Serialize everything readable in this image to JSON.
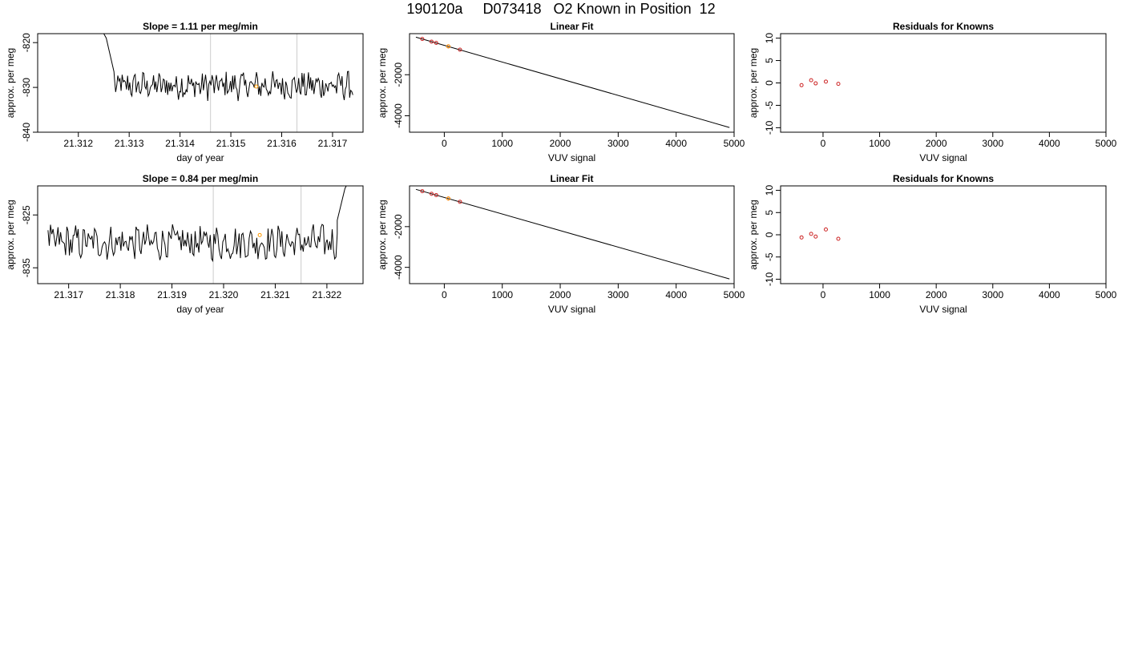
{
  "figure_title": "190120a     D073418   O2 Known in Position  12",
  "colors": {
    "trace": "#000000",
    "marker_line": "#cccccc",
    "point": "#cc2222",
    "highlight": "#ff9900",
    "axis": "#000000"
  },
  "chart_data": [
    {
      "id": "trace-1",
      "type": "line",
      "title": "Slope =  1.11  per meg/min",
      "xlabel": "day of year",
      "ylabel": "approx. per meg",
      "xlim": [
        21.3112,
        21.3176
      ],
      "ylim": [
        -840,
        -818
      ],
      "xticks": [
        21.312,
        21.313,
        21.314,
        21.315,
        21.316,
        21.317
      ],
      "xtick_labels": [
        "21.312",
        "21.313",
        "21.314",
        "21.315",
        "21.316",
        "21.317"
      ],
      "yticks": [
        -820,
        -830,
        -840
      ],
      "ytick_labels": [
        "-820",
        "-830",
        "-840"
      ],
      "vlines": [
        21.3146,
        21.3163
      ],
      "x_start": 21.3125,
      "x_end": 21.3174,
      "lead_in": [
        [
          21.3125,
          -818
        ],
        [
          21.31255,
          -819
        ],
        [
          21.3126,
          -821.5
        ],
        [
          21.31265,
          -824
        ],
        [
          21.3127,
          -826.5
        ]
      ],
      "tail": [],
      "noise_amp": 2.8,
      "noise_center": -829.6,
      "highlight_point": [
        21.3155,
        -829.8
      ],
      "grid": false
    },
    {
      "id": "fit-1",
      "type": "scatter",
      "title": "Linear Fit",
      "xlabel": "VUV signal",
      "ylabel": "approx. per meg",
      "xlim": [
        -600,
        5000
      ],
      "ylim": [
        -4800,
        0
      ],
      "xticks": [
        0,
        1000,
        2000,
        3000,
        4000,
        5000
      ],
      "xtick_labels": [
        "0",
        "1000",
        "2000",
        "3000",
        "4000",
        "5000"
      ],
      "yticks": [
        -2000,
        -4000
      ],
      "ytick_labels": [
        "-2000",
        "-4000"
      ],
      "fit_line": [
        [
          -490,
          -170
        ],
        [
          4920,
          -4570
        ]
      ],
      "points": [
        [
          -380,
          -260
        ],
        [
          -220,
          -390
        ],
        [
          -140,
          -450
        ],
        [
          70,
          -620
        ],
        [
          270,
          -780
        ]
      ],
      "highlight_point": [
        70,
        -620
      ],
      "grid": false
    },
    {
      "id": "resid-1",
      "type": "scatter",
      "title": "Residuals for Knowns",
      "xlabel": "VUV signal",
      "ylabel": "approx. per meg",
      "xlim": [
        -750,
        5000
      ],
      "ylim": [
        -11,
        11
      ],
      "xticks": [
        0,
        1000,
        2000,
        3000,
        4000,
        5000
      ],
      "xtick_labels": [
        "0",
        "1000",
        "2000",
        "3000",
        "4000",
        "5000"
      ],
      "yticks": [
        10,
        5,
        0,
        -5,
        -10
      ],
      "ytick_labels": [
        "10",
        "5",
        "0",
        "-5",
        "-10"
      ],
      "points": [
        [
          -380,
          -0.5
        ],
        [
          -210,
          0.6
        ],
        [
          -130,
          -0.1
        ],
        [
          50,
          0.3
        ],
        [
          270,
          -0.2
        ]
      ],
      "grid": false
    },
    {
      "id": "trace-2",
      "type": "line",
      "title": "Slope =  0.84  per meg/min",
      "xlabel": "day of year",
      "ylabel": "approx. per meg",
      "xlim": [
        21.3164,
        21.3227
      ],
      "ylim": [
        -838,
        -819.5
      ],
      "xticks": [
        21.317,
        21.318,
        21.319,
        21.32,
        21.321,
        21.322
      ],
      "xtick_labels": [
        "21.317",
        "21.318",
        "21.319",
        "21.320",
        "21.321",
        "21.322"
      ],
      "yticks": [
        -825,
        -835
      ],
      "ytick_labels": [
        "-825",
        "-835"
      ],
      "vlines": [
        21.3198,
        21.3215
      ],
      "x_start": 21.3166,
      "x_end": 21.3222,
      "lead_in": [],
      "tail": [
        [
          21.3222,
          -826
        ],
        [
          21.32225,
          -824
        ],
        [
          21.3223,
          -822
        ],
        [
          21.32235,
          -820
        ],
        [
          21.3224,
          -819
        ]
      ],
      "noise_amp": 2.9,
      "noise_center": -830.2,
      "highlight_point": [
        21.3207,
        -828.8
      ],
      "grid": false
    },
    {
      "id": "fit-2",
      "type": "scatter",
      "title": "Linear Fit",
      "xlabel": "VUV signal",
      "ylabel": "approx. per meg",
      "xlim": [
        -600,
        5000
      ],
      "ylim": [
        -4800,
        0
      ],
      "xticks": [
        0,
        1000,
        2000,
        3000,
        4000,
        5000
      ],
      "xtick_labels": [
        "0",
        "1000",
        "2000",
        "3000",
        "4000",
        "5000"
      ],
      "yticks": [
        -2000,
        -4000
      ],
      "ytick_labels": [
        "-2000",
        "-4000"
      ],
      "fit_line": [
        [
          -490,
          -170
        ],
        [
          4920,
          -4570
        ]
      ],
      "points": [
        [
          -380,
          -260
        ],
        [
          -220,
          -390
        ],
        [
          -140,
          -450
        ],
        [
          70,
          -620
        ],
        [
          270,
          -780
        ]
      ],
      "highlight_point": [
        70,
        -620
      ],
      "grid": false
    },
    {
      "id": "resid-2",
      "type": "scatter",
      "title": "Residuals for Knowns",
      "xlabel": "VUV signal",
      "ylabel": "approx. per meg",
      "xlim": [
        -750,
        5000
      ],
      "ylim": [
        -11,
        11
      ],
      "xticks": [
        0,
        1000,
        2000,
        3000,
        4000,
        5000
      ],
      "xtick_labels": [
        "0",
        "1000",
        "2000",
        "3000",
        "4000",
        "5000"
      ],
      "yticks": [
        10,
        5,
        0,
        -5,
        -10
      ],
      "ytick_labels": [
        "10",
        "5",
        "0",
        "-5",
        "-10"
      ],
      "points": [
        [
          -380,
          -0.6
        ],
        [
          -210,
          0.2
        ],
        [
          -130,
          -0.4
        ],
        [
          50,
          1.2
        ],
        [
          270,
          -0.9
        ]
      ],
      "grid": false
    }
  ]
}
